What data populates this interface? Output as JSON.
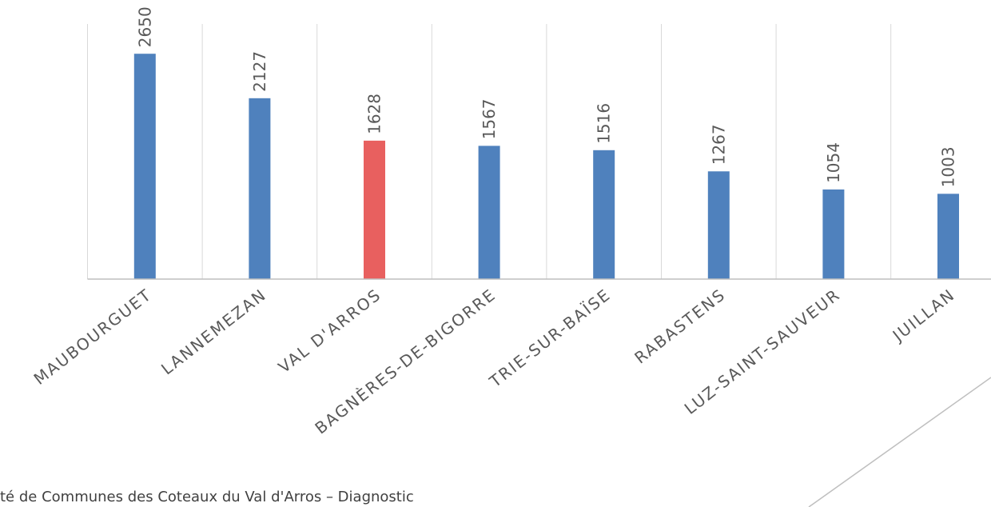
{
  "chart_data": {
    "type": "bar",
    "categories": [
      "MAUBOURGUET",
      "LANNEMEZAN",
      "VAL D'ARROS",
      "BAGNÈRES-DE-BIGORRE",
      "TRIE-SUR-BAÏSE",
      "RABASTENS",
      "LUZ-SAINT-SAUVEUR",
      "JUILLAN"
    ],
    "values": [
      2650,
      2127,
      1628,
      1567,
      1516,
      1267,
      1054,
      1003
    ],
    "colors": [
      "#4f81bd",
      "#4f81bd",
      "#e8605f",
      "#4f81bd",
      "#4f81bd",
      "#4f81bd",
      "#4f81bd",
      "#4f81bd"
    ],
    "ylim": [
      0,
      3000
    ],
    "footer": "té de Communes des Coteaux du Val d'Arros – Diagnostic"
  }
}
